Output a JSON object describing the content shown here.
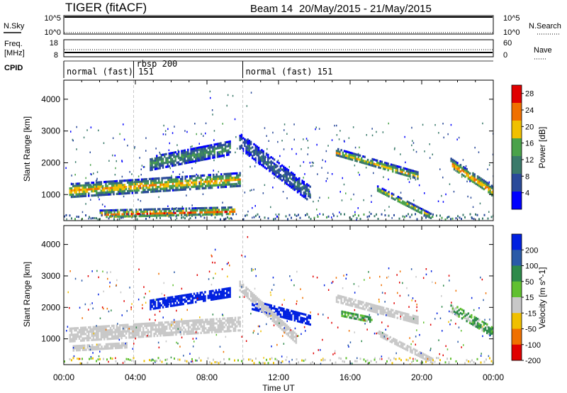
{
  "header": {
    "title": "TIGER (fitACF)",
    "beam": "Beam 14",
    "date_range": "20/May/2015 - 21/May/2015"
  },
  "top_panels": {
    "nsky": {
      "label": "N.Sky",
      "ticks": [
        "10^5",
        "10^0"
      ]
    },
    "nsearch": {
      "label": "N.Search",
      "ticks": [
        "10^5",
        "10^0"
      ]
    },
    "freq": {
      "label_line1": "Freq.",
      "label_line2": "[MHz]",
      "ticks": [
        "18",
        "8"
      ]
    },
    "nave": {
      "label": "Nave",
      "ticks": [
        "60",
        "0"
      ]
    },
    "cpid": {
      "label": "CPID",
      "segments": [
        {
          "name": "normal (fast) 151",
          "start_h": 0
        },
        {
          "name": "rbsp 200",
          "start_h": 3.9
        },
        {
          "name": "normal (fast) 151",
          "start_h": 10.0
        }
      ]
    }
  },
  "chart_data": [
    {
      "type": "heatmap",
      "title": "",
      "ylabel": "Slant Range [km]",
      "xlabel": "",
      "x_range_hours": [
        0,
        24
      ],
      "ylim_km": [
        180,
        4600
      ],
      "yticks": [
        1000,
        2000,
        3000,
        4000
      ],
      "colorbar": {
        "label": "Power [dB]",
        "ticks": [
          4,
          8,
          12,
          16,
          20,
          24,
          28
        ],
        "range": [
          0,
          30
        ],
        "colors": [
          "#0000ff",
          "#2a4a9a",
          "#3a7a6a",
          "#4aa24a",
          "#f0c000",
          "#f07000",
          "#e00000"
        ]
      },
      "echo_bands": [
        {
          "t0": 0.3,
          "t1": 9.8,
          "r_start": 1150,
          "r_end": 1500,
          "width": 420,
          "power": 22
        },
        {
          "t0": 2.0,
          "t1": 9.5,
          "r_start": 400,
          "r_end": 500,
          "width": 260,
          "power": 25
        },
        {
          "t0": 4.8,
          "t1": 9.3,
          "r_start": 2000,
          "r_end": 2500,
          "width": 420,
          "power": 14
        },
        {
          "t0": 9.8,
          "t1": 13.8,
          "r_start": 2700,
          "r_end": 1000,
          "width": 500,
          "power": 10
        },
        {
          "t0": 15.2,
          "t1": 19.8,
          "r_start": 2350,
          "r_end": 1600,
          "width": 250,
          "power": 20
        },
        {
          "t0": 17.5,
          "t1": 20.6,
          "r_start": 1200,
          "r_end": 300,
          "width": 180,
          "power": 20
        },
        {
          "t0": 21.6,
          "t1": 24.0,
          "r_start": 2000,
          "r_end": 1100,
          "width": 320,
          "power": 24
        }
      ]
    },
    {
      "type": "heatmap",
      "title": "",
      "ylabel": "Slant Range [km]",
      "xlabel": "Time UT",
      "x_range_hours": [
        0,
        24
      ],
      "ylim_km": [
        180,
        4600
      ],
      "yticks": [
        1000,
        2000,
        3000,
        4000
      ],
      "xticks": [
        "00:00",
        "04:00",
        "08:00",
        "12:00",
        "16:00",
        "20:00",
        "00:00"
      ],
      "colorbar": {
        "label": "Velocity [m s^-1]",
        "ticks": [
          "200",
          "100",
          "50",
          "15",
          "-15",
          "-50",
          "-100",
          "-200"
        ],
        "range": [
          -250,
          250
        ],
        "colors": [
          "#0020e0",
          "#2a5aa8",
          "#2e8a4a",
          "#60c030",
          "#c8c8c8",
          "#f0c000",
          "#f07000",
          "#e00000"
        ]
      },
      "echo_bands": [
        {
          "t0": 0.3,
          "t1": 9.8,
          "r_start": 1150,
          "r_end": 1500,
          "width": 420,
          "velocity": 0
        },
        {
          "t0": 0.5,
          "t1": 3.5,
          "r_start": 700,
          "r_end": 800,
          "width": 200,
          "velocity": 0
        },
        {
          "t0": 4.8,
          "t1": 9.3,
          "r_start": 2100,
          "r_end": 2500,
          "width": 300,
          "velocity": 180
        },
        {
          "t0": 10.5,
          "t1": 13.8,
          "r_start": 2100,
          "r_end": 1600,
          "width": 300,
          "velocity": 200
        },
        {
          "t0": 9.8,
          "t1": 13.0,
          "r_start": 2700,
          "r_end": 1000,
          "width": 300,
          "velocity": 0
        },
        {
          "t0": 15.5,
          "t1": 17.2,
          "r_start": 1800,
          "r_end": 1600,
          "width": 200,
          "velocity": 40
        },
        {
          "t0": 15.2,
          "t1": 19.8,
          "r_start": 2300,
          "r_end": 1600,
          "width": 240,
          "velocity": 0
        },
        {
          "t0": 17.5,
          "t1": 20.6,
          "r_start": 1200,
          "r_end": 300,
          "width": 180,
          "velocity": 0
        },
        {
          "t0": 21.6,
          "t1": 24.0,
          "r_start": 2000,
          "r_end": 1200,
          "width": 320,
          "velocity": 30
        }
      ]
    }
  ]
}
